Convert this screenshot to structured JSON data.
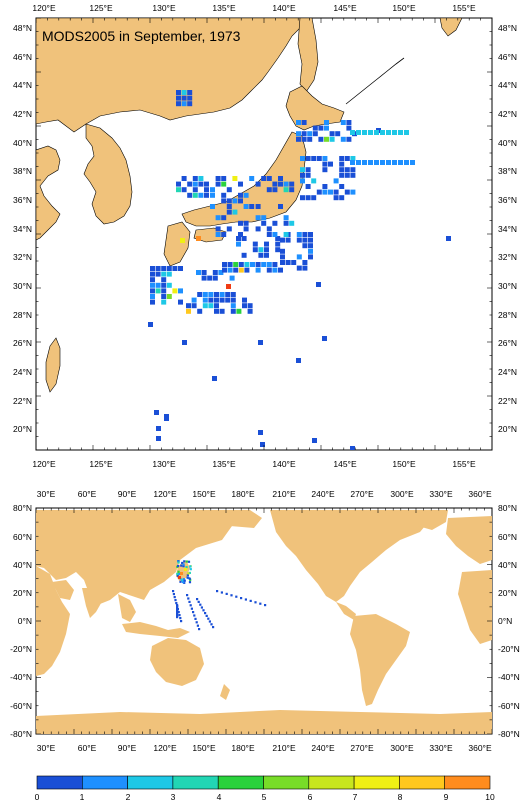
{
  "top_map": {
    "title": "MODS2005 in September, 1973",
    "lon_labels": [
      "120°E",
      "125°E",
      "130°E",
      "135°E",
      "140°E",
      "145°E",
      "150°E",
      "155°E"
    ],
    "lat_labels": [
      "48°N",
      "46°N",
      "44°N",
      "42°N",
      "40°N",
      "38°N",
      "36°N",
      "34°N",
      "32°N",
      "30°N",
      "28°N",
      "26°N",
      "24°N",
      "22°N",
      "20°N"
    ]
  },
  "world_map": {
    "lon_labels": [
      "30°E",
      "60°E",
      "90°E",
      "120°E",
      "150°E",
      "180°E",
      "210°E",
      "240°E",
      "270°E",
      "300°E",
      "330°E",
      "360°E"
    ],
    "lat_labels": [
      "80°N",
      "60°N",
      "40°N",
      "20°N",
      "0°N",
      "-20°N",
      "-40°N",
      "-60°N",
      "-80°N"
    ]
  },
  "colorbar": {
    "labels": [
      "0",
      "1",
      "2",
      "3",
      "4",
      "5",
      "6",
      "7",
      "8",
      "9",
      "10"
    ],
    "colors": [
      "#1a4fd6",
      "#1e90ff",
      "#1ec8e6",
      "#22d6b4",
      "#2ad23c",
      "#78dc28",
      "#c8e61e",
      "#f0f014",
      "#ffc81e",
      "#ff8c1e",
      "#f03c14"
    ]
  },
  "colors": {
    "land": "#f0c27b",
    "coast": "#000000",
    "ocean": "#ffffff"
  }
}
